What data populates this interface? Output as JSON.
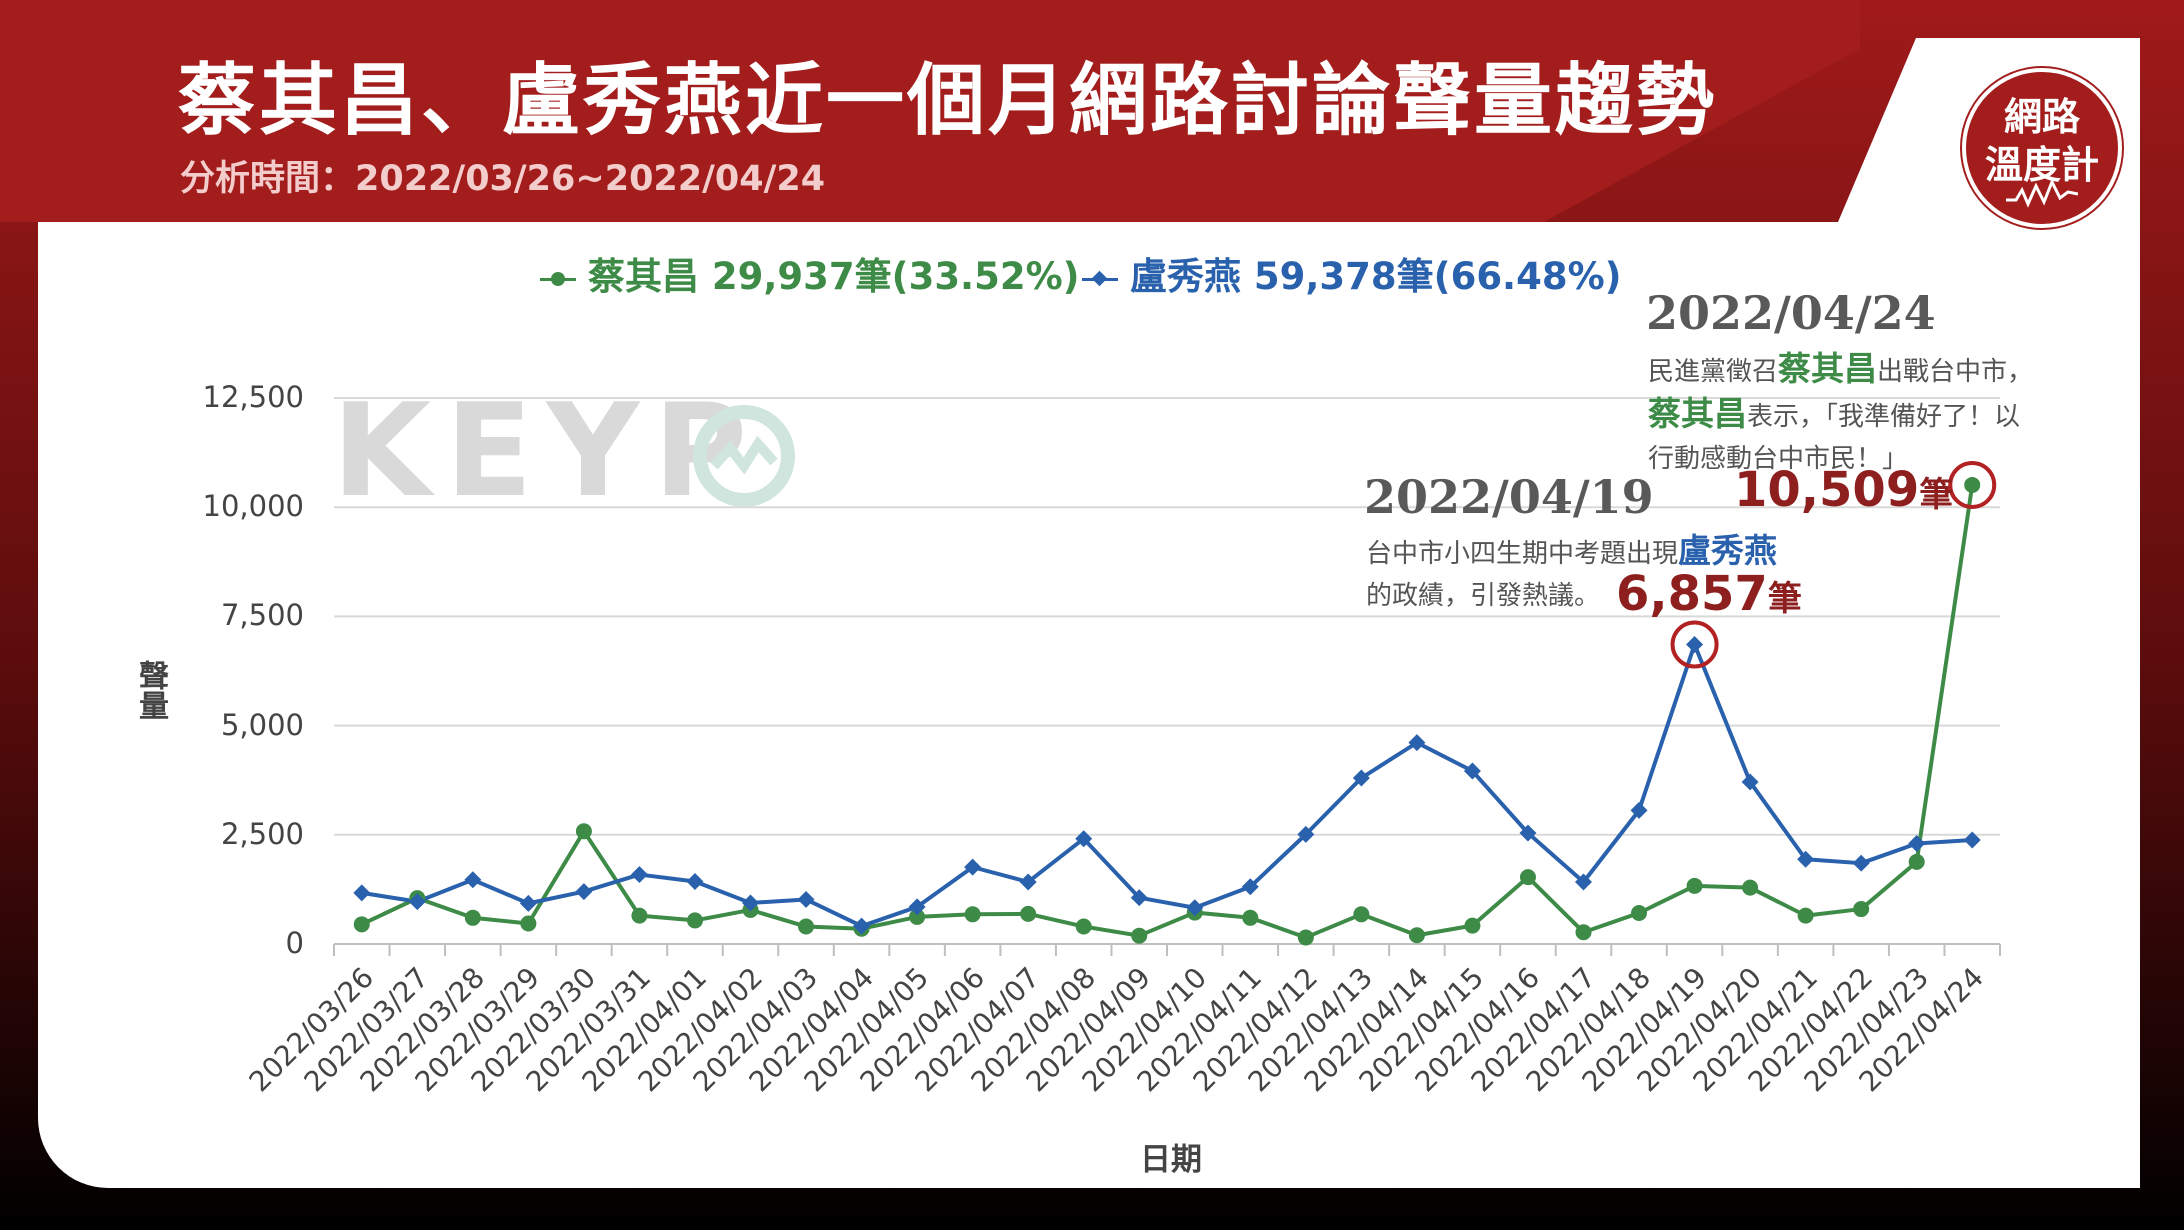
{
  "header": {
    "title": "蔡其昌、盧秀燕近一個月網路討論聲量趨勢",
    "period": "分析時間：2022/03/26~2022/04/24"
  },
  "logo": {
    "line1": "網路",
    "line2": "溫度計"
  },
  "watermark": {
    "text": "KEYP"
  },
  "chart_data": {
    "type": "line",
    "xlabel": "日期",
    "ylabel": "聲量",
    "ylim": [
      0,
      12500
    ],
    "yticks": [
      0,
      2500,
      5000,
      7500,
      10000,
      12500
    ],
    "ytick_labels": [
      "0",
      "2,500",
      "5,000",
      "7,500",
      "10,000",
      "12,500"
    ],
    "grid": true,
    "legend_position": "top",
    "categories": [
      "2022/03/26",
      "2022/03/27",
      "2022/03/28",
      "2022/03/29",
      "2022/03/30",
      "2022/03/31",
      "2022/04/01",
      "2022/04/02",
      "2022/04/03",
      "2022/04/04",
      "2022/04/05",
      "2022/04/06",
      "2022/04/07",
      "2022/04/08",
      "2022/04/09",
      "2022/04/10",
      "2022/04/11",
      "2022/04/12",
      "2022/04/13",
      "2022/04/14",
      "2022/04/15",
      "2022/04/16",
      "2022/04/17",
      "2022/04/18",
      "2022/04/19",
      "2022/04/20",
      "2022/04/21",
      "2022/04/22",
      "2022/04/23",
      "2022/04/24"
    ],
    "series": [
      {
        "name": "蔡其昌",
        "legend_label": "蔡其昌 29,937筆(33.52%)",
        "color": "#3e8b48",
        "marker": "circle",
        "values": [
          450,
          1050,
          600,
          470,
          2580,
          650,
          540,
          780,
          400,
          350,
          620,
          680,
          690,
          400,
          190,
          720,
          600,
          150,
          680,
          200,
          420,
          1530,
          270,
          710,
          1330,
          1290,
          650,
          800,
          1880,
          10509
        ]
      },
      {
        "name": "盧秀燕",
        "legend_label": "盧秀燕 59,378筆(66.48%)",
        "color": "#2a61ad",
        "marker": "diamond",
        "values": [
          1170,
          970,
          1470,
          930,
          1200,
          1590,
          1430,
          940,
          1020,
          410,
          850,
          1760,
          1420,
          2410,
          1060,
          830,
          1310,
          2510,
          3800,
          4610,
          3960,
          2540,
          1420,
          3060,
          6857,
          3710,
          1940,
          1850,
          2300,
          2380
        ]
      }
    ],
    "annotations": [
      {
        "date": "2022/04/19",
        "text_line1_prefix": "台中市小四生期中考題出現",
        "text_line1_keyword": "盧秀燕",
        "text_line2": "的政績，引發熱議。",
        "count": "6,857",
        "unit": "筆"
      },
      {
        "date": "2022/04/24",
        "text_line1_prefix": "民進黨徵召",
        "text_line1_keyword": "蔡其昌",
        "text_line1_suffix": "出戰台中市，",
        "text_line2_keyword": "蔡其昌",
        "text_line2_suffix": "表示，「我準備好了！以",
        "text_line3": "行動感動台中市民！」",
        "count": "10,509",
        "unit": "筆"
      }
    ]
  }
}
